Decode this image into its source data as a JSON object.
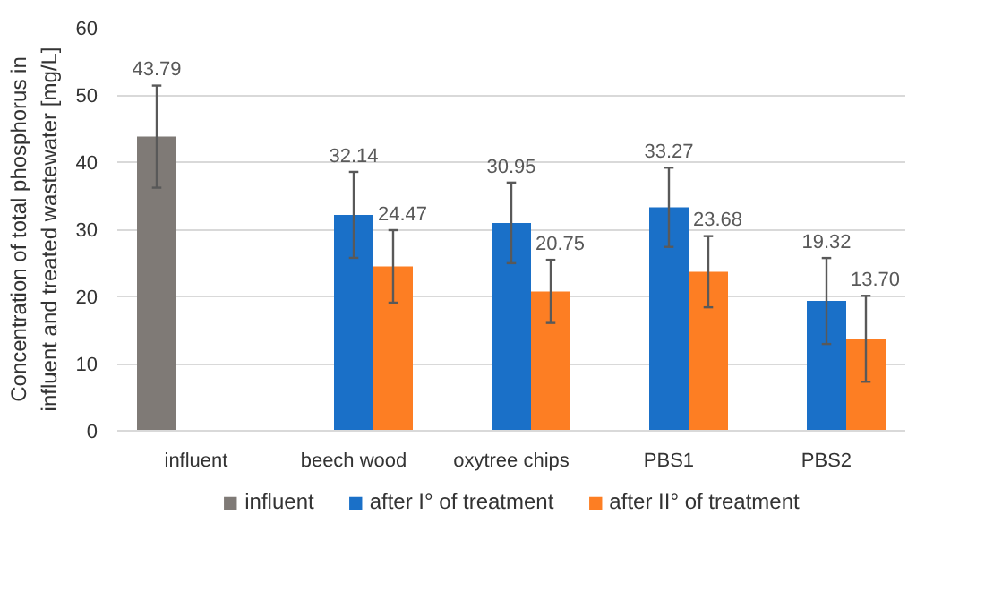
{
  "chart_data": {
    "type": "bar",
    "ylabel": "Concentration of total phosphorus in influent and treated wastewater [mg/L]",
    "categories": [
      "influent",
      "beech wood",
      "oxytree chips",
      "PBS1",
      "PBS2"
    ],
    "ylim": [
      0,
      60
    ],
    "yticks": [
      0,
      10,
      20,
      30,
      40,
      50,
      60
    ],
    "grid": "y",
    "legend": "bottom",
    "series": [
      {
        "name": "influent",
        "color": "#7f7a76",
        "values": [
          43.79,
          null,
          null,
          null,
          null
        ],
        "errors": [
          7.6,
          null,
          null,
          null,
          null
        ],
        "value_labels": [
          "43.79",
          null,
          null,
          null,
          null
        ]
      },
      {
        "name": "after I° of treatment",
        "color": "#1a70c8",
        "values": [
          null,
          32.14,
          30.95,
          33.27,
          19.32
        ],
        "errors": [
          null,
          6.4,
          6.0,
          5.9,
          6.4
        ],
        "value_labels": [
          null,
          "32.14",
          "30.95",
          "33.27",
          "19.32"
        ]
      },
      {
        "name": "after II° of treatment",
        "color": "#fd7e23",
        "values": [
          null,
          24.47,
          20.75,
          23.68,
          13.7
        ],
        "errors": [
          null,
          5.4,
          4.7,
          5.3,
          6.4
        ],
        "value_labels": [
          null,
          "24.47",
          "20.75",
          "23.68",
          "13.70"
        ]
      }
    ]
  }
}
